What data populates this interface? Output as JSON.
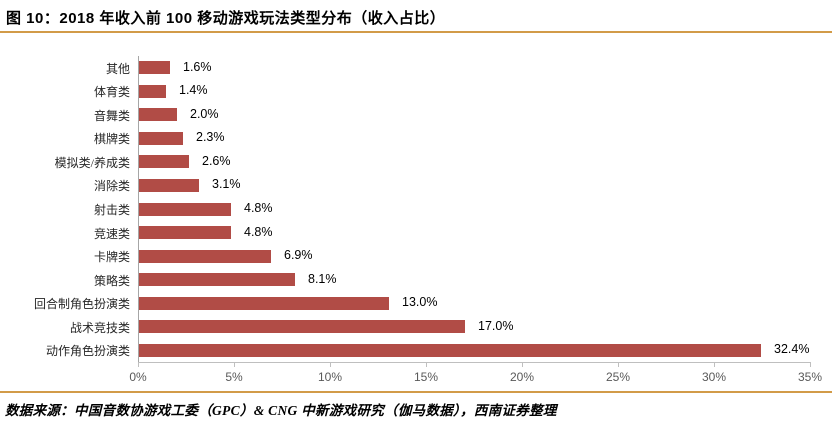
{
  "title": "图 10：2018 年收入前 100 移动游戏玩法类型分布（收入占比）",
  "footer": {
    "source_text": "数据来源：中国音数协游戏工委（GPC）& CNG 中新游戏研究（伽马数据），西南证券整理"
  },
  "colors": {
    "bar": "#b14c46",
    "rule": "#d29b48",
    "axis_line": "#bfbfbf",
    "category_axis": "#a6a6a6",
    "tick_text": "#595959"
  },
  "chart_data": {
    "type": "bar",
    "orientation": "horizontal",
    "title": "2018 年收入前 100 移动游戏玩法类型分布（收入占比）",
    "categories": [
      "其他",
      "体育类",
      "音舞类",
      "棋牌类",
      "模拟类/养成类",
      "消除类",
      "射击类",
      "竞速类",
      "卡牌类",
      "策略类",
      "回合制角色扮演类",
      "战术竞技类",
      "动作角色扮演类"
    ],
    "values": [
      1.6,
      1.4,
      2.0,
      2.3,
      2.6,
      3.1,
      4.8,
      4.8,
      6.9,
      8.1,
      13.0,
      17.0,
      32.4
    ],
    "value_labels": [
      "1.6%",
      "1.4%",
      "2.0%",
      "2.3%",
      "2.6%",
      "3.1%",
      "4.8%",
      "4.8%",
      "6.9%",
      "8.1%",
      "13.0%",
      "17.0%",
      "32.4%"
    ],
    "x_ticks": [
      "0%",
      "5%",
      "10%",
      "15%",
      "20%",
      "25%",
      "30%",
      "35%"
    ],
    "xlim": [
      0,
      35
    ],
    "xlabel": "",
    "ylabel": "",
    "grid": false,
    "legend": null
  }
}
